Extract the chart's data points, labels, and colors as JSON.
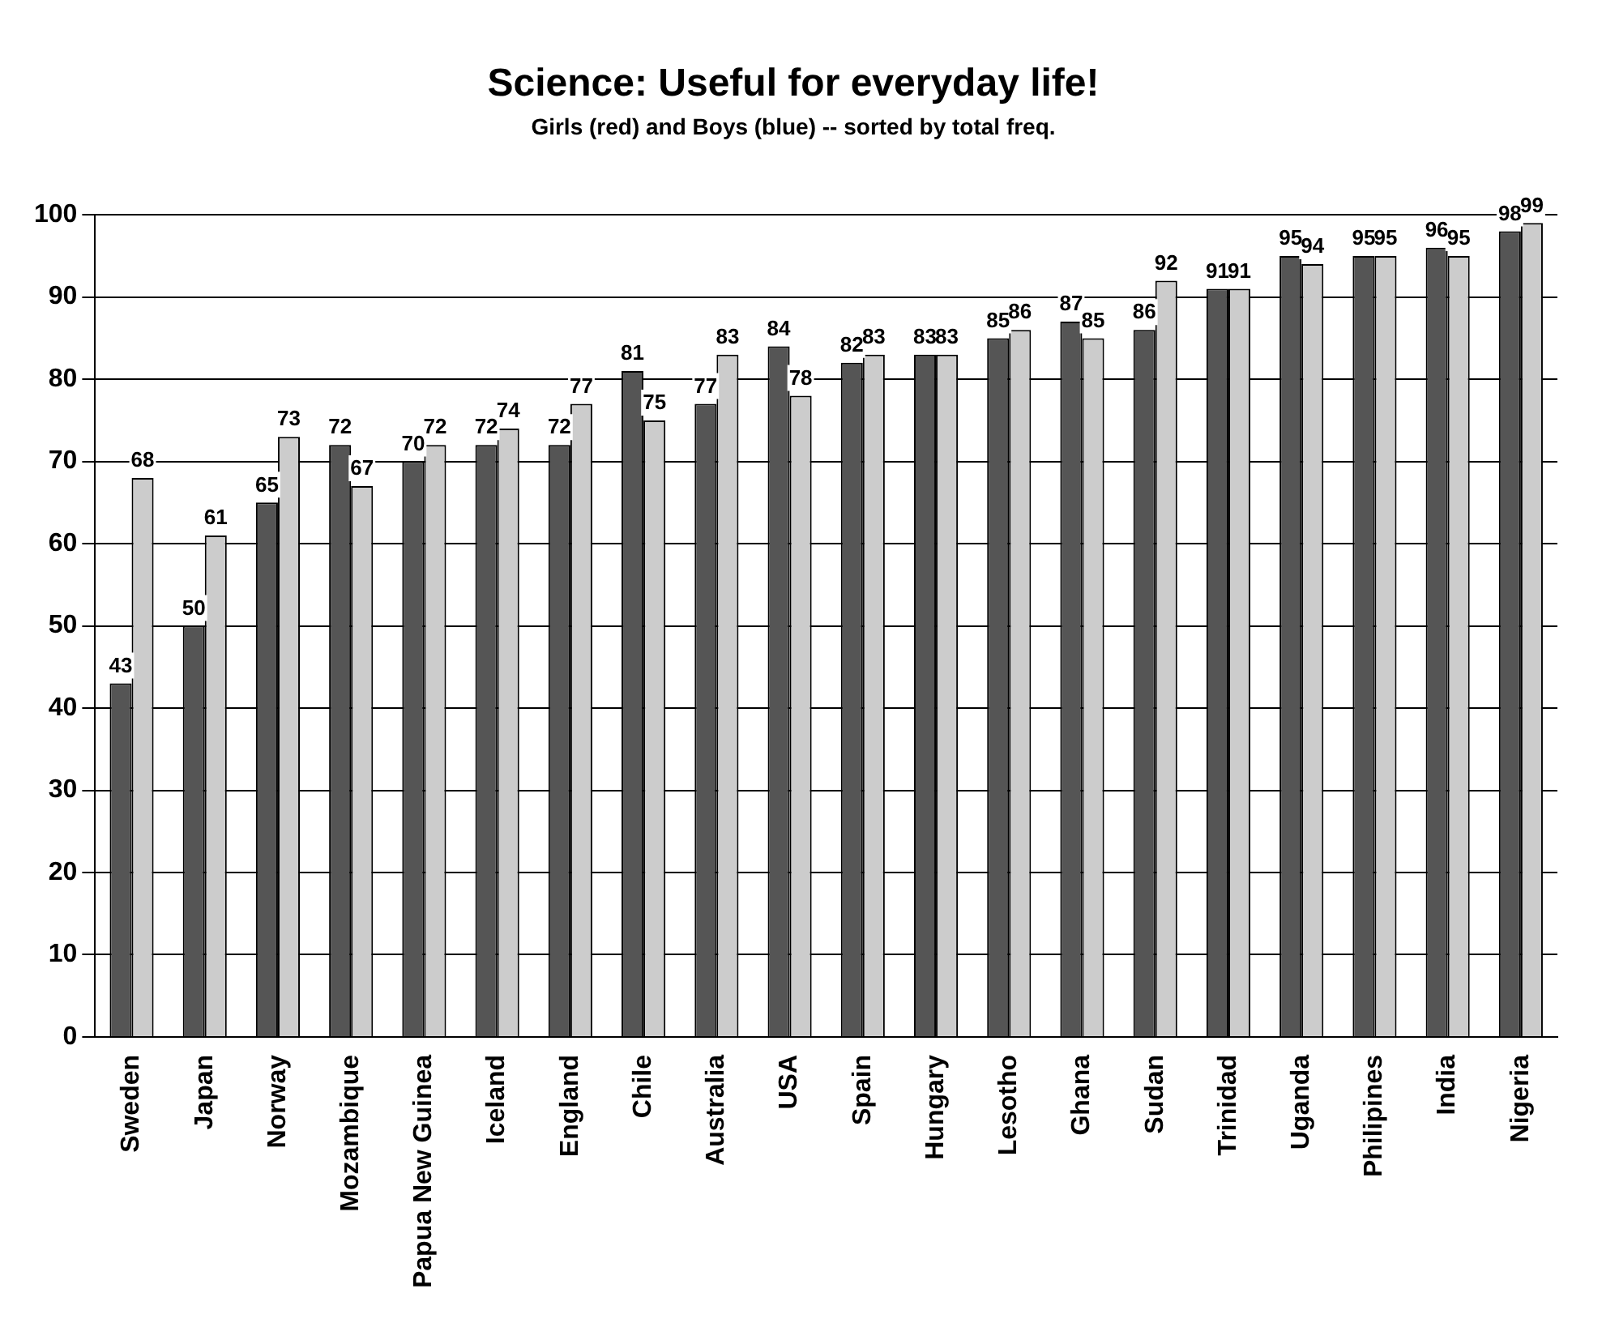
{
  "chart_data": {
    "type": "bar",
    "title": "Science: Useful for everyday life!",
    "subtitle": "Girls (red) and Boys (blue) -- sorted by total freq.",
    "categories": [
      "Sweden",
      "Japan",
      "Norway",
      "Mozambique",
      "Papua New Guinea",
      "Iceland",
      "England",
      "Chile",
      "Australia",
      "USA",
      "Spain",
      "Hungary",
      "Lesotho",
      "Ghana",
      "Sudan",
      "Trinidad",
      "Uganda",
      "Philipines",
      "India",
      "Nigeria"
    ],
    "series": [
      {
        "color": "#555555",
        "values": [
          43,
          50,
          65,
          72,
          70,
          72,
          72,
          81,
          77,
          84,
          82,
          83,
          85,
          87,
          86,
          91,
          95,
          95,
          96,
          98
        ]
      },
      {
        "color": "#cccccc",
        "values": [
          68,
          61,
          73,
          67,
          72,
          74,
          77,
          75,
          83,
          78,
          83,
          83,
          86,
          85,
          92,
          91,
          94,
          95,
          95,
          99
        ]
      }
    ],
    "ylim": [
      0,
      100
    ],
    "yticks": [
      0,
      10,
      20,
      30,
      40,
      50,
      60,
      70,
      80,
      90,
      100
    ],
    "grid": "y",
    "legend": false,
    "data_labels": true
  }
}
